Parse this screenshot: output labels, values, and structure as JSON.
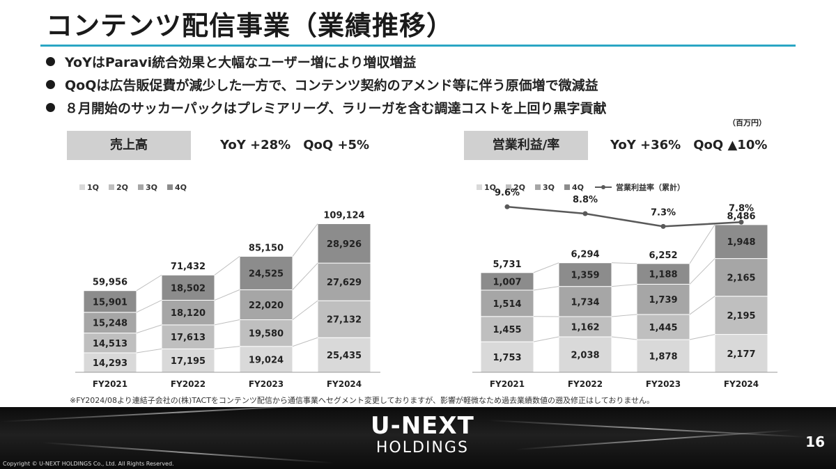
{
  "title": "コンテンツ配信事業（業績推移）",
  "bullets": [
    "YoYはParavi統合効果と大幅なユーザー増により増収増益",
    "QoQは広告販促費が減少した一方で、コンテンツ契約のアメンド等に伴う原価増で微減益",
    "８月開始のサッカーパックはプレミアリーグ、ラリーガを含む調達コストを上回り黒字貢献"
  ],
  "unit": "（百万円）",
  "revenue_panel": {
    "label": "売上高",
    "metric": "YoY +28%　QoQ +5%"
  },
  "profit_panel": {
    "label": "営業利益/率",
    "metric": "YoY +36%　QoQ ▲10%"
  },
  "footnote": "※FY2024/08より連結子会社の(株)TACTをコンテンツ配信から通信事業へセグメント変更しておりますが、影響が軽微なため過去業績数値の遡及修正はしておりません。",
  "footer": {
    "logo_main": "U-NEXT",
    "logo_sub": "HOLDINGS",
    "page_number": "16",
    "copyright": "Copyright © U-NEXT HOLDINGS Co., Ltd. All Rights Reserved."
  },
  "colors": {
    "q1": "#d9d9d9",
    "q2": "#bfbfbf",
    "q3": "#a6a6a6",
    "q4": "#8c8c8c",
    "line": "#595959",
    "accent": "#2aa6c4"
  },
  "chart_data": [
    {
      "type": "bar",
      "stacked": true,
      "categories": [
        "FY2021",
        "FY2022",
        "FY2023",
        "FY2024"
      ],
      "series": [
        {
          "name": "1Q",
          "values": [
            14293,
            17195,
            19024,
            25435
          ]
        },
        {
          "name": "2Q",
          "values": [
            14513,
            17613,
            19580,
            27132
          ]
        },
        {
          "name": "3Q",
          "values": [
            15248,
            18120,
            22020,
            27629
          ]
        },
        {
          "name": "4Q",
          "values": [
            15901,
            18502,
            24525,
            28926
          ]
        }
      ],
      "totals": [
        59956,
        71432,
        85150,
        109124
      ],
      "total_labels": [
        "59,956",
        "71,432",
        "85,150",
        "109,124"
      ],
      "ylim": [
        0,
        115000
      ],
      "legend": "top-left"
    },
    {
      "type": "bar",
      "stacked": true,
      "categories": [
        "FY2021",
        "FY2022",
        "FY2023",
        "FY2024"
      ],
      "series": [
        {
          "name": "1Q",
          "values": [
            1753,
            2038,
            1878,
            2177
          ]
        },
        {
          "name": "2Q",
          "values": [
            1455,
            1162,
            1445,
            2195
          ]
        },
        {
          "name": "3Q",
          "values": [
            1514,
            1734,
            1739,
            2165
          ]
        },
        {
          "name": "4Q",
          "values": [
            1007,
            1359,
            1188,
            1948
          ]
        }
      ],
      "totals": [
        5731,
        6294,
        6252,
        8486
      ],
      "total_labels": [
        "5,731",
        "6,294",
        "6,252",
        "8,486"
      ],
      "ylim": [
        0,
        9000
      ],
      "line_series": {
        "name": "営業利益率（累計）",
        "values": [
          9.6,
          8.8,
          7.3,
          7.8
        ],
        "labels": [
          "9.6%",
          "8.8%",
          "7.3%",
          "7.8%"
        ],
        "ylim": [
          0,
          11
        ]
      },
      "legend": "top-left"
    }
  ]
}
